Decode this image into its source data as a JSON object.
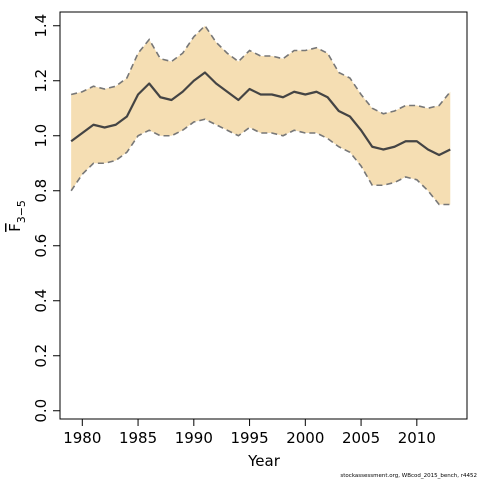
{
  "chart_data": {
    "type": "line",
    "xlabel": "Year",
    "ylabel_main": "F",
    "ylabel_sub": "3−5",
    "xlim": [
      1978,
      2014.5
    ],
    "ylim": [
      -0.03,
      1.45
    ],
    "x_ticks": [
      1980,
      1985,
      1990,
      1995,
      2000,
      2005,
      2010
    ],
    "y_ticks": [
      0.0,
      0.2,
      0.4,
      0.6,
      0.8,
      1.0,
      1.2,
      1.4
    ],
    "y_tick_labels": [
      "0.0",
      "0.2",
      "0.4",
      "0.6",
      "0.8",
      "1.0",
      "1.2",
      "1.4"
    ],
    "grid": false,
    "x": [
      1979,
      1980,
      1981,
      1982,
      1983,
      1984,
      1985,
      1986,
      1987,
      1988,
      1989,
      1990,
      1991,
      1992,
      1993,
      1994,
      1995,
      1996,
      1997,
      1998,
      1999,
      2000,
      2001,
      2002,
      2003,
      2004,
      2005,
      2006,
      2007,
      2008,
      2009,
      2010,
      2011,
      2012,
      2013
    ],
    "series": [
      {
        "values": [
          0.98,
          1.01,
          1.04,
          1.03,
          1.04,
          1.07,
          1.15,
          1.19,
          1.14,
          1.13,
          1.16,
          1.2,
          1.23,
          1.19,
          1.16,
          1.13,
          1.17,
          1.15,
          1.15,
          1.14,
          1.16,
          1.15,
          1.16,
          1.14,
          1.09,
          1.07,
          1.02,
          0.96,
          0.95,
          0.96,
          0.98,
          0.98,
          0.95,
          0.93,
          0.95
        ],
        "color": "#444444"
      }
    ],
    "band": {
      "upper": [
        1.15,
        1.16,
        1.18,
        1.17,
        1.18,
        1.21,
        1.3,
        1.35,
        1.28,
        1.27,
        1.3,
        1.36,
        1.4,
        1.34,
        1.3,
        1.27,
        1.31,
        1.29,
        1.29,
        1.28,
        1.31,
        1.31,
        1.32,
        1.3,
        1.23,
        1.21,
        1.15,
        1.1,
        1.08,
        1.09,
        1.11,
        1.11,
        1.1,
        1.11,
        1.16
      ],
      "lower": [
        0.8,
        0.86,
        0.9,
        0.9,
        0.91,
        0.94,
        1.0,
        1.02,
        1.0,
        1.0,
        1.02,
        1.05,
        1.06,
        1.04,
        1.02,
        1.0,
        1.03,
        1.01,
        1.01,
        1.0,
        1.02,
        1.01,
        1.01,
        0.99,
        0.96,
        0.94,
        0.89,
        0.82,
        0.82,
        0.83,
        0.85,
        0.84,
        0.8,
        0.75,
        0.75
      ],
      "fill": "#f5deb3",
      "edge": "#777777"
    },
    "footnote": "stockassessment.org, WBcod_2015_bench, r4452"
  }
}
